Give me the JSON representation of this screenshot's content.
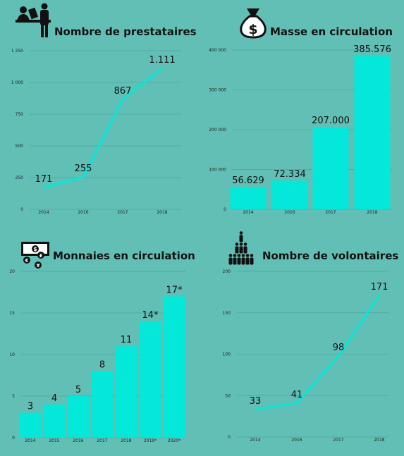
{
  "colors": {
    "background": "#62bfb5",
    "series": "#04e8da",
    "grid": "#4aa99f",
    "text": "#111111"
  },
  "panels": [
    {
      "title": "Nombre de prestataires",
      "icon": "reception-desk-icon"
    },
    {
      "title": "Masse en circulation",
      "icon": "money-bag-icon"
    },
    {
      "title": "Monnaies en circulation",
      "icon": "banknote-coins-icon"
    },
    {
      "title": "Nombre de volontaires",
      "icon": "group-people-icon"
    }
  ],
  "chart_data": [
    {
      "type": "line",
      "title": "Nombre de prestataires",
      "categories": [
        "2014",
        "2016",
        "2017",
        "2018"
      ],
      "values": [
        171,
        255,
        867,
        1111
      ],
      "data_labels": [
        "171",
        "255",
        "867",
        "1.111"
      ],
      "yticks": [
        "0",
        "250",
        "500",
        "750",
        "1 000",
        "1 250"
      ],
      "ylim": [
        0,
        1250
      ],
      "grid": true
    },
    {
      "type": "bar",
      "title": "Masse en circulation",
      "categories": [
        "2014",
        "2016",
        "2017",
        "2018"
      ],
      "values": [
        56629,
        72334,
        207000,
        385576
      ],
      "data_labels": [
        "56.629",
        "72.334",
        "207.000",
        "385.576"
      ],
      "yticks": [
        "0",
        "100 000",
        "200 000",
        "300 000",
        "400 000"
      ],
      "ylim": [
        0,
        400000
      ],
      "grid": true
    },
    {
      "type": "bar",
      "title": "Monnaies en circulation",
      "categories": [
        "2014",
        "2015",
        "2016",
        "2017",
        "2018",
        "2019*",
        "2020*"
      ],
      "values": [
        3,
        4,
        5,
        8,
        11,
        14,
        17
      ],
      "data_labels": [
        "3",
        "4",
        "5",
        "8",
        "11",
        "14*",
        "17*"
      ],
      "yticks": [
        "0",
        "5",
        "10",
        "15",
        "20"
      ],
      "ylim": [
        0,
        20
      ],
      "grid": true
    },
    {
      "type": "line",
      "title": "Nombre de volontaires",
      "categories": [
        "2014",
        "2016",
        "2017",
        "2018"
      ],
      "values": [
        33,
        41,
        98,
        171
      ],
      "data_labels": [
        "33",
        "41",
        "98",
        "171"
      ],
      "yticks": [
        "0",
        "50",
        "100",
        "150",
        "200"
      ],
      "ylim": [
        0,
        200
      ],
      "grid": true
    }
  ]
}
